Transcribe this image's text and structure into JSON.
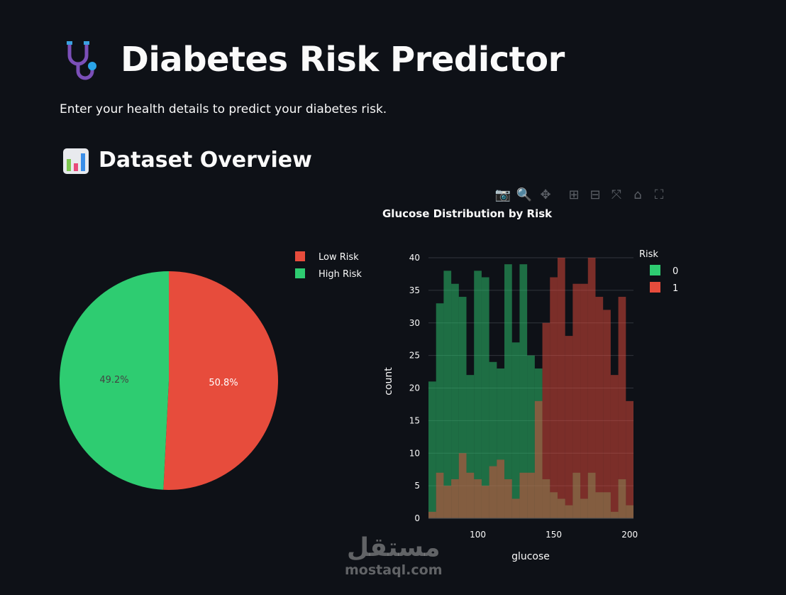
{
  "header": {
    "title": "Diabetes Risk Predictor",
    "icon": "stethoscope-icon",
    "subtitle": "Enter your health details to predict your diabetes risk."
  },
  "section": {
    "title": "Dataset Overview",
    "icon": "bar-chart-icon"
  },
  "modebar": [
    {
      "name": "camera-icon",
      "glyph": "📷",
      "label": "Download plot as png"
    },
    {
      "name": "zoom-icon",
      "glyph": "🔍"
    },
    {
      "name": "pan-icon",
      "glyph": "✥"
    },
    {
      "name": "zoom-in-icon",
      "glyph": "⊞"
    },
    {
      "name": "zoom-out-icon",
      "glyph": "⊟"
    },
    {
      "name": "autoscale-icon",
      "glyph": "⤧"
    },
    {
      "name": "home-icon",
      "glyph": "⌂"
    },
    {
      "name": "fullscreen-icon",
      "glyph": "⛶"
    }
  ],
  "watermark": {
    "arabic": "مستقل",
    "latin": "mostaql.com"
  },
  "colors": {
    "background": "#0e1117",
    "green": "#2ecc71",
    "red": "#e74c3c"
  },
  "chart_data": [
    {
      "type": "pie",
      "labels": [
        "Low Risk",
        "High Risk"
      ],
      "values": [
        50.8,
        49.2
      ],
      "value_labels": [
        "50.8%",
        "49.2%"
      ],
      "colors": [
        "#e74c3c",
        "#2ecc71"
      ],
      "legend": "top-right"
    },
    {
      "type": "bar",
      "subtype": "histogram-overlay",
      "title": "Glucose Distribution by Risk",
      "xlabel": "glucose",
      "ylabel": "count",
      "xlim": [
        67.5,
        202.5
      ],
      "ylim": [
        0,
        40
      ],
      "bin_size": 5,
      "xticks": [
        100,
        150,
        200
      ],
      "yticks": [
        0,
        5,
        10,
        15,
        20,
        25,
        30,
        35,
        40
      ],
      "grid": true,
      "legend_title": "Risk",
      "legend": "top-right",
      "series": [
        {
          "name": "0",
          "color": "#2ecc71",
          "values": [
            21,
            33,
            38,
            36,
            34,
            22,
            38,
            37,
            24,
            23,
            39,
            27,
            39,
            25,
            23,
            6,
            4,
            3,
            2,
            7,
            3,
            7,
            4,
            4,
            1,
            6,
            2
          ]
        },
        {
          "name": "1",
          "color": "#e74c3c",
          "values": [
            1,
            7,
            5,
            6,
            10,
            7,
            6,
            5,
            8,
            9,
            6,
            3,
            7,
            7,
            18,
            30,
            37,
            40,
            28,
            36,
            36,
            40,
            34,
            32,
            22,
            34,
            18
          ]
        }
      ]
    }
  ]
}
